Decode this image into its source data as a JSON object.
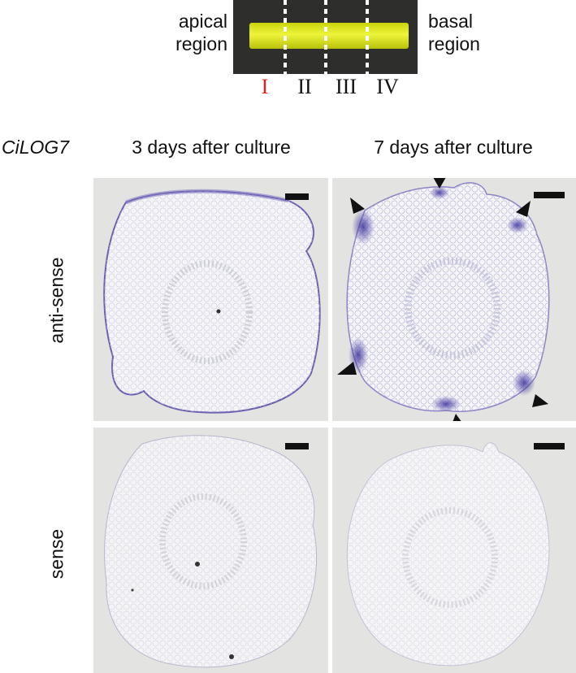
{
  "explant": {
    "left_label_line1": "apical",
    "left_label_line2": "region",
    "right_label_line1": "basal",
    "right_label_line2": "region",
    "sections": [
      "I",
      "II",
      "III",
      "IV"
    ],
    "colors": {
      "background": "#2c2c2c",
      "tissue": "#dfe812",
      "highlight_section": "#e0201b"
    }
  },
  "figure": {
    "gene_label": "CiLOG7",
    "col_headers": [
      "3 days after culture",
      "7 days after culture"
    ],
    "row_labels": [
      "anti-sense",
      "sense"
    ],
    "panels": [
      {
        "id": "antisense-3d",
        "signal": "weak",
        "arrowheads": 0
      },
      {
        "id": "antisense-7d",
        "signal": "strong",
        "arrowheads": 6
      },
      {
        "id": "sense-3d",
        "signal": "none",
        "arrowheads": 0
      },
      {
        "id": "sense-7d",
        "signal": "none",
        "arrowheads": 0
      }
    ],
    "colors": {
      "panel_bg": "#e3e3e1",
      "stain": "#3a2f9a",
      "tissue": "#f1f1f5"
    }
  }
}
